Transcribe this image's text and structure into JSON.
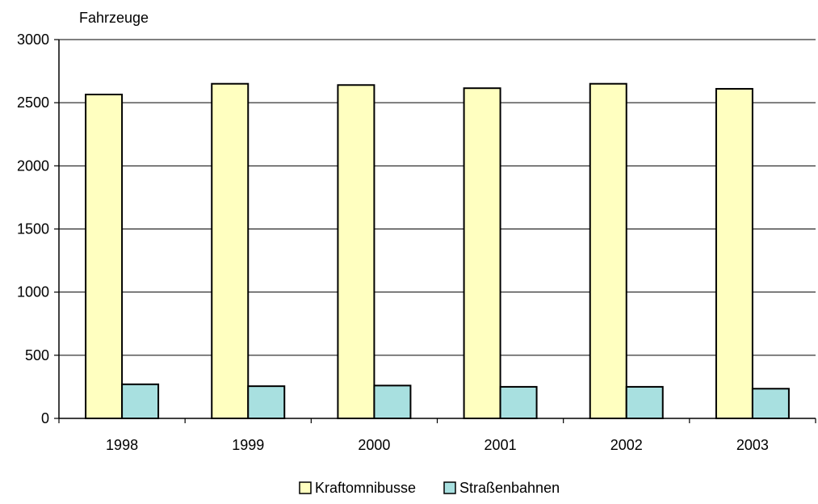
{
  "chart_data": {
    "type": "bar",
    "ylabel": "Fahrzeuge",
    "categories": [
      "1998",
      "1999",
      "2000",
      "2001",
      "2002",
      "2003"
    ],
    "series": [
      {
        "name": "Kraftomnibusse",
        "color": "#FFFFC0",
        "values": [
          2565,
          2650,
          2640,
          2615,
          2650,
          2610
        ]
      },
      {
        "name": "Straßenbahnen",
        "color": "#A8E0E0",
        "values": [
          270,
          255,
          260,
          250,
          250,
          235
        ]
      }
    ],
    "ylim": [
      0,
      3000
    ],
    "yticks": [
      "0",
      "500",
      "1000",
      "1500",
      "2000",
      "2500",
      "3000"
    ],
    "grid": true,
    "legend_position": "bottom"
  }
}
